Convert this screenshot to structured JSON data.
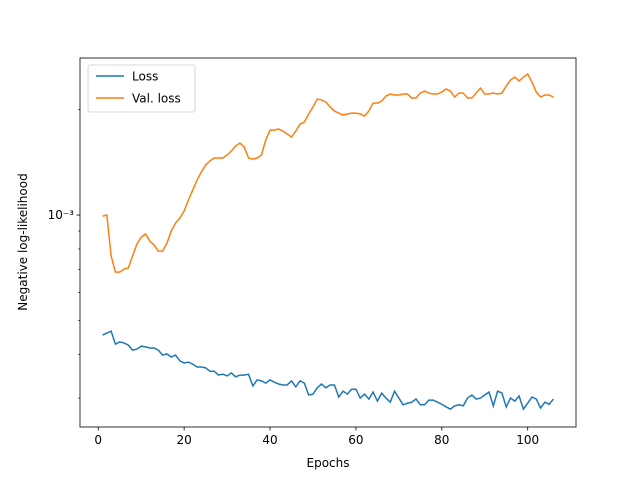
{
  "chart_data": {
    "type": "line",
    "xlabel": "Epochs",
    "ylabel": "Negative log-likelihood",
    "x": [
      1,
      2,
      3,
      4,
      5,
      6,
      7,
      8,
      9,
      10,
      11,
      12,
      13,
      14,
      15,
      16,
      17,
      18,
      19,
      20,
      21,
      22,
      23,
      24,
      25,
      26,
      27,
      28,
      29,
      30,
      31,
      32,
      33,
      34,
      35,
      36,
      37,
      38,
      39,
      40,
      41,
      42,
      43,
      44,
      45,
      46,
      47,
      48,
      49,
      50,
      51,
      52,
      53,
      54,
      55,
      56,
      57,
      58,
      59,
      60,
      61,
      62,
      63,
      64,
      65,
      66,
      67,
      68,
      69,
      70,
      71,
      72,
      73,
      74,
      75,
      76,
      77,
      78,
      79,
      80,
      81,
      82,
      83,
      84,
      85,
      86,
      87,
      88,
      89,
      90,
      91,
      92,
      93,
      94,
      95,
      96,
      97,
      98,
      99,
      100,
      101,
      102,
      103,
      104,
      105,
      106
    ],
    "series": [
      {
        "name": "Loss",
        "color": "#1f77b4",
        "values": [
          0.000454,
          0.00046,
          0.000466,
          0.000428,
          0.000434,
          0.000431,
          0.000425,
          0.000411,
          0.000414,
          0.000422,
          0.00042,
          0.000417,
          0.000417,
          0.000411,
          0.000398,
          0.000401,
          0.000393,
          0.000398,
          0.000383,
          0.000378,
          0.00038,
          0.000375,
          0.000368,
          0.000368,
          0.000366,
          0.000358,
          0.000358,
          0.000349,
          0.000351,
          0.000347,
          0.000354,
          0.000345,
          0.000349,
          0.000349,
          0.000351,
          0.000325,
          0.000338,
          0.000336,
          0.000331,
          0.000338,
          0.000333,
          0.000329,
          0.000327,
          0.000327,
          0.000336,
          0.000323,
          0.000336,
          0.000331,
          0.000306,
          0.000308,
          0.000321,
          0.000329,
          0.000321,
          0.000327,
          0.000327,
          0.000302,
          0.000314,
          0.000308,
          0.000318,
          0.000318,
          0.0003,
          0.000308,
          0.000298,
          0.000312,
          0.000294,
          0.00031,
          0.0003,
          0.000292,
          0.000314,
          0.0003,
          0.000287,
          0.00029,
          0.000292,
          0.000298,
          0.000287,
          0.000287,
          0.000296,
          0.000296,
          0.000292,
          0.000288,
          0.000283,
          0.000279,
          0.000285,
          0.000287,
          0.000285,
          0.0003,
          0.000306,
          0.000298,
          0.0003,
          0.000306,
          0.000312,
          0.000285,
          0.000314,
          0.00031,
          0.000283,
          0.0003,
          0.000294,
          0.000304,
          0.000279,
          0.00029,
          0.000302,
          0.000298,
          0.000281,
          0.000292,
          0.000288,
          0.000298
        ]
      },
      {
        "name": "Val. loss",
        "color": "#ff7f0e",
        "values": [
          0.000993,
          0.001,
          0.000764,
          0.000687,
          0.000687,
          0.000701,
          0.000706,
          0.000764,
          0.000826,
          0.000865,
          0.000883,
          0.000843,
          0.000821,
          0.000789,
          0.000789,
          0.000832,
          0.0009,
          0.000949,
          0.00098,
          0.001027,
          0.001104,
          0.001179,
          0.001259,
          0.001327,
          0.001389,
          0.001427,
          0.001455,
          0.001455,
          0.001455,
          0.001484,
          0.001524,
          0.001575,
          0.001606,
          0.001564,
          0.001455,
          0.001445,
          0.001455,
          0.001484,
          0.001638,
          0.001749,
          0.001749,
          0.001761,
          0.001738,
          0.001704,
          0.001671,
          0.001738,
          0.00182,
          0.001844,
          0.001944,
          0.002035,
          0.002145,
          0.002131,
          0.002103,
          0.002035,
          0.001982,
          0.001956,
          0.001931,
          0.001944,
          0.001956,
          0.001956,
          0.001944,
          0.001918,
          0.001982,
          0.002089,
          0.002089,
          0.002117,
          0.002188,
          0.002217,
          0.002202,
          0.002202,
          0.002217,
          0.002217,
          0.002159,
          0.002159,
          0.002231,
          0.002261,
          0.002231,
          0.002217,
          0.002217,
          0.002246,
          0.002291,
          0.002261,
          0.002174,
          0.002231,
          0.002231,
          0.002159,
          0.002159,
          0.002231,
          0.002306,
          0.002217,
          0.002217,
          0.002231,
          0.002217,
          0.002231,
          0.002337,
          0.002431,
          0.002479,
          0.002415,
          0.002479,
          0.002528,
          0.002399,
          0.002246,
          0.002174,
          0.002202,
          0.002202,
          0.002174
        ]
      }
    ],
    "xlim": [
      -4.25,
      111.25
    ],
    "xticks": [
      0,
      20,
      40,
      60,
      80,
      100
    ],
    "ylim": [
      0.000248,
      0.00281
    ],
    "yscale": "log",
    "yticks": [
      {
        "value": 0.001,
        "label": "10⁻³"
      }
    ],
    "yminorticks": [
      0.0003,
      0.0004,
      0.0005,
      0.0006,
      0.0007,
      0.0008,
      0.0009,
      0.002
    ],
    "legend": "upper left"
  }
}
